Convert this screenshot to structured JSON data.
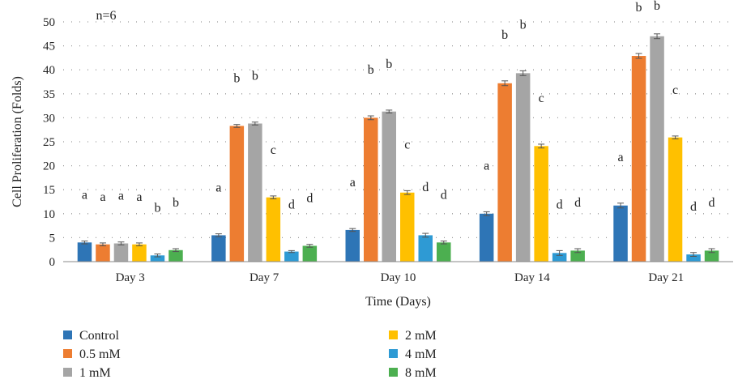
{
  "chart_data": {
    "type": "bar",
    "title": "",
    "annotation": "n=6",
    "xlabel": "Time (Days)",
    "ylabel": "Cell Proliferation (Folds)",
    "ylim": [
      0,
      50
    ],
    "yticks": [
      0,
      5,
      10,
      15,
      20,
      25,
      30,
      35,
      40,
      45,
      50
    ],
    "grid": true,
    "legend_position": "bottom",
    "categories": [
      "Day 3",
      "Day 7",
      "Day 10",
      "Day 14",
      "Day 21"
    ],
    "series": [
      {
        "name": "Control",
        "color": "#2e75b6",
        "values": [
          4.0,
          5.5,
          6.6,
          10.0,
          11.7
        ],
        "errors": [
          0.3,
          0.3,
          0.3,
          0.4,
          0.5
        ],
        "letters": [
          "a",
          "a",
          "a",
          "a",
          "a"
        ]
      },
      {
        "name": "0.5 mM",
        "color": "#ed7d31",
        "values": [
          3.6,
          28.3,
          30.0,
          37.2,
          42.9
        ],
        "errors": [
          0.3,
          0.3,
          0.4,
          0.5,
          0.5
        ],
        "letters": [
          "a",
          "b",
          "b",
          "b",
          "b"
        ]
      },
      {
        "name": "1 mM",
        "color": "#a5a5a5",
        "values": [
          3.8,
          28.8,
          31.3,
          39.3,
          47.0
        ],
        "errors": [
          0.3,
          0.3,
          0.3,
          0.5,
          0.5
        ],
        "letters": [
          "a",
          "b",
          "b",
          "b",
          "b"
        ]
      },
      {
        "name": "2 mM",
        "color": "#ffc000",
        "values": [
          3.6,
          13.4,
          14.4,
          24.1,
          25.9
        ],
        "errors": [
          0.3,
          0.3,
          0.4,
          0.4,
          0.3
        ],
        "letters": [
          "a",
          "c",
          "c",
          "c",
          "c"
        ]
      },
      {
        "name": "4 mM",
        "color": "#2e9ad4",
        "values": [
          1.3,
          2.1,
          5.5,
          1.8,
          1.5
        ],
        "errors": [
          0.3,
          0.2,
          0.4,
          0.5,
          0.4
        ],
        "letters": [
          "b",
          "d",
          "d",
          "d",
          "d"
        ]
      },
      {
        "name": "8 mM",
        "color": "#4caf50",
        "values": [
          2.4,
          3.3,
          4.0,
          2.3,
          2.3
        ],
        "errors": [
          0.3,
          0.3,
          0.3,
          0.4,
          0.4
        ],
        "letters": [
          "b",
          "d",
          "d",
          "d",
          "d"
        ]
      }
    ]
  }
}
